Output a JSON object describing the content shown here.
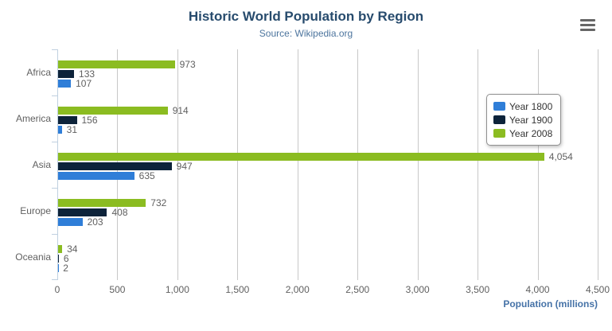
{
  "header": {
    "title": "Historic World Population by Region",
    "subtitle": "Source: Wikipedia.org",
    "export_menu_icon": "hamburger-icon"
  },
  "chart_data": {
    "type": "bar",
    "orientation": "horizontal",
    "title": "Historic World Population by Region",
    "subtitle": "Source: Wikipedia.org",
    "categories": [
      "Africa",
      "America",
      "Asia",
      "Europe",
      "Oceania"
    ],
    "series": [
      {
        "name": "Year 1800",
        "color": "#2f7ed8",
        "values": [
          107,
          31,
          635,
          203,
          2
        ]
      },
      {
        "name": "Year 1900",
        "color": "#0d233a",
        "values": [
          133,
          156,
          947,
          408,
          6
        ]
      },
      {
        "name": "Year 2008",
        "color": "#8bbc21",
        "values": [
          973,
          914,
          4054,
          732,
          34
        ]
      }
    ],
    "bar_order_top_to_bottom": [
      "Year 2008",
      "Year 1900",
      "Year 1800"
    ],
    "data_labels": [
      "973",
      "133",
      "107",
      "914",
      "156",
      "31",
      "4,054",
      "947",
      "635",
      "732",
      "408",
      "203",
      "34",
      "6",
      "2"
    ],
    "xlabel": "Population (millions)",
    "ylabel": "",
    "xlim": [
      0,
      4500
    ],
    "x_tick_values": [
      0,
      500,
      1000,
      1500,
      2000,
      2500,
      3000,
      3500,
      4000,
      4500
    ],
    "x_tick_labels": [
      "0",
      "500",
      "1,000",
      "1,500",
      "2,000",
      "2,500",
      "3,000",
      "3,500",
      "4,000",
      "4,500"
    ],
    "grid": true,
    "gridline_color": "#c8c8c8",
    "axis_line_color": "#c0d0e0",
    "legend_position": "top-right-floating",
    "legend_entries": [
      "Year 1800",
      "Year 1900",
      "Year 2008"
    ]
  },
  "style_colors": {
    "title": "#274b6d",
    "subtitle": "#4d759e",
    "axis_title": "#4572a7",
    "labels": "#606060"
  }
}
